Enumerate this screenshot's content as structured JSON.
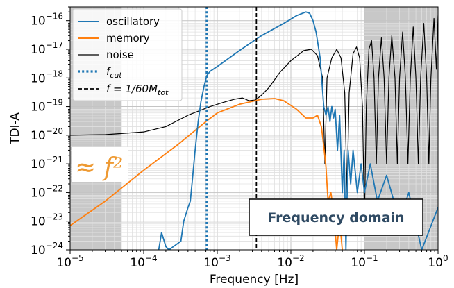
{
  "chart_data": {
    "type": "line",
    "xlabel": "Frequency [Hz]",
    "ylabel": "TDI-A",
    "xscale": "log",
    "yscale": "log",
    "xlim": [
      1e-05,
      1
    ],
    "ylim": [
      1e-24,
      3e-16
    ],
    "grid": true,
    "legend_position": "top-left",
    "x_tick_labels": [
      {
        "base": "10",
        "exp": "−5",
        "value": 1e-05
      },
      {
        "base": "10",
        "exp": "−4",
        "value": 0.0001
      },
      {
        "base": "10",
        "exp": "−3",
        "value": 0.001
      },
      {
        "base": "10",
        "exp": "−2",
        "value": 0.01
      },
      {
        "base": "10",
        "exp": "−1",
        "value": 0.1
      },
      {
        "base": "10",
        "exp": "0",
        "value": 1
      }
    ],
    "y_tick_labels": [
      {
        "base": "10",
        "exp": "−24",
        "value": 1e-24
      },
      {
        "base": "10",
        "exp": "−23",
        "value": 1e-23
      },
      {
        "base": "10",
        "exp": "−22",
        "value": 1e-22
      },
      {
        "base": "10",
        "exp": "−21",
        "value": 1e-21
      },
      {
        "base": "10",
        "exp": "−20",
        "value": 1e-20
      },
      {
        "base": "10",
        "exp": "−19",
        "value": 1e-19
      },
      {
        "base": "10",
        "exp": "−18",
        "value": 1e-18
      },
      {
        "base": "10",
        "exp": "−17",
        "value": 1e-17
      },
      {
        "base": "10",
        "exp": "−16",
        "value": 1e-16
      }
    ],
    "shaded_regions": [
      {
        "x_from": 1e-05,
        "x_to": 5e-05
      },
      {
        "x_from": 0.1,
        "x_to": 1
      }
    ],
    "vertical_lines": [
      {
        "label": "f_cut",
        "x": 0.00072,
        "style": "dotted",
        "color": "#1f77b4"
      },
      {
        "label": "f = 1/60 M_tot",
        "x": 0.0034,
        "style": "dashed",
        "color": "#000000"
      }
    ],
    "series": [
      {
        "name": "oscillatory",
        "color": "#1f77b4",
        "points": [
          [
            0.00016,
            1e-24
          ],
          [
            0.000175,
            4e-24
          ],
          [
            0.0002,
            1.3e-24
          ],
          [
            0.00022,
            1e-24
          ],
          [
            0.00032,
            2e-24
          ],
          [
            0.00035,
            1e-23
          ],
          [
            0.0004,
            3e-23
          ],
          [
            0.00043,
            5e-23
          ],
          [
            0.00046,
            3e-22
          ],
          [
            0.0005,
            3e-21
          ],
          [
            0.00055,
            3e-20
          ],
          [
            0.0006,
            1.5e-19
          ],
          [
            0.00066,
            5e-19
          ],
          [
            0.00072,
            1.2e-18
          ],
          [
            0.0008,
            1.7e-18
          ],
          [
            0.001,
            2.5e-18
          ],
          [
            0.002,
            9e-18
          ],
          [
            0.004,
            3e-17
          ],
          [
            0.008,
            8e-17
          ],
          [
            0.012,
            1.5e-16
          ],
          [
            0.016,
            2e-16
          ],
          [
            0.018,
            1.8e-16
          ],
          [
            0.02,
            1e-16
          ],
          [
            0.022,
            4e-17
          ],
          [
            0.025,
            5e-18
          ],
          [
            0.028,
            1e-19
          ],
          [
            0.03,
            5e-20
          ],
          [
            0.032,
            1e-19
          ],
          [
            0.034,
            3e-20
          ],
          [
            0.036,
            1e-19
          ],
          [
            0.038,
            4e-20
          ],
          [
            0.04,
            8e-20
          ],
          [
            0.043,
            3e-21
          ],
          [
            0.046,
            5e-20
          ],
          [
            0.05,
            1e-22
          ],
          [
            0.053,
            3e-21
          ],
          [
            0.056,
            1e-24
          ],
          [
            0.06,
            3e-21
          ],
          [
            0.065,
            2e-22
          ],
          [
            0.07,
            3e-21
          ],
          [
            0.08,
            1e-22
          ],
          [
            0.09,
            1e-21
          ],
          [
            0.1,
            1e-22
          ],
          [
            0.12,
            1e-21
          ],
          [
            0.15,
            5e-23
          ],
          [
            0.2,
            4e-22
          ],
          [
            0.3,
            1e-23
          ],
          [
            0.4,
            1e-22
          ],
          [
            0.6,
            1e-24
          ],
          [
            1,
            3e-23
          ]
        ]
      },
      {
        "name": "memory",
        "color": "#ff7f0e",
        "points": [
          [
            1e-05,
            7e-24
          ],
          [
            3e-05,
            5e-23
          ],
          [
            0.0001,
            6e-22
          ],
          [
            0.0003,
            5e-21
          ],
          [
            0.0007,
            3e-20
          ],
          [
            0.001,
            6e-20
          ],
          [
            0.002,
            1.2e-19
          ],
          [
            0.004,
            1.8e-19
          ],
          [
            0.006,
            1.9e-19
          ],
          [
            0.008,
            1.6e-19
          ],
          [
            0.012,
            8e-20
          ],
          [
            0.016,
            4e-20
          ],
          [
            0.02,
            4e-20
          ],
          [
            0.023,
            5e-20
          ],
          [
            0.026,
            2e-20
          ],
          [
            0.028,
            4e-21
          ],
          [
            0.03,
            8e-22
          ],
          [
            0.032,
            5e-23
          ],
          [
            0.035,
            1e-22
          ],
          [
            0.038,
            2e-23
          ],
          [
            0.042,
            1e-24
          ],
          [
            0.046,
            1e-23
          ],
          [
            0.05,
            1e-24
          ]
        ]
      },
      {
        "name": "noise",
        "color": "#000000",
        "points": [
          [
            1e-05,
            1e-20
          ],
          [
            3e-05,
            1.05e-20
          ],
          [
            0.0001,
            1.3e-20
          ],
          [
            0.0002,
            2e-20
          ],
          [
            0.0004,
            5e-20
          ],
          [
            0.0008,
            1e-19
          ],
          [
            0.0012,
            1.4e-19
          ],
          [
            0.0017,
            1.8e-19
          ],
          [
            0.0022,
            2e-19
          ],
          [
            0.0027,
            1.6e-19
          ],
          [
            0.0033,
            1.7e-19
          ],
          [
            0.004,
            2.5e-19
          ],
          [
            0.005,
            4.5e-19
          ],
          [
            0.007,
            1.5e-18
          ],
          [
            0.01,
            4e-18
          ],
          [
            0.015,
            9e-18
          ],
          [
            0.019,
            1e-17
          ],
          [
            0.023,
            6e-18
          ],
          [
            0.027,
            1e-18
          ],
          [
            0.029,
            1e-21
          ],
          [
            0.031,
            1e-18
          ],
          [
            0.036,
            5e-18
          ],
          [
            0.042,
            1e-17
          ],
          [
            0.048,
            5e-18
          ],
          [
            0.054,
            3e-19
          ],
          [
            0.058,
            1e-22
          ],
          [
            0.062,
            3e-19
          ],
          [
            0.07,
            7e-18
          ],
          [
            0.078,
            1.2e-17
          ],
          [
            0.086,
            5e-18
          ],
          [
            0.094,
            1e-19
          ],
          [
            0.1,
            1e-23
          ],
          [
            0.106,
            1e-19
          ],
          [
            0.115,
            1e-17
          ],
          [
            0.125,
            2e-17
          ],
          [
            0.135,
            1e-18
          ],
          [
            0.145,
            1e-21
          ],
          [
            0.155,
            1e-18
          ],
          [
            0.17,
            2.5e-17
          ],
          [
            0.185,
            1e-18
          ],
          [
            0.2,
            1e-21
          ],
          [
            0.215,
            1e-18
          ],
          [
            0.235,
            3e-17
          ],
          [
            0.26,
            1e-18
          ],
          [
            0.28,
            1e-21
          ],
          [
            0.3,
            1e-18
          ],
          [
            0.33,
            4e-17
          ],
          [
            0.36,
            1e-18
          ],
          [
            0.39,
            1e-21
          ],
          [
            0.42,
            1e-18
          ],
          [
            0.46,
            6e-17
          ],
          [
            0.5,
            1e-18
          ],
          [
            0.54,
            1e-21
          ],
          [
            0.58,
            1e-18
          ],
          [
            0.64,
            8e-17
          ],
          [
            0.7,
            1e-18
          ],
          [
            0.75,
            1e-21
          ],
          [
            0.8,
            1e-18
          ],
          [
            0.88,
            1.2e-16
          ],
          [
            0.95,
            2e-18
          ],
          [
            1,
            1.5e-16
          ]
        ]
      }
    ],
    "annotations": [
      {
        "id": "f2",
        "text": "≈ f²",
        "color": "#ee9a33"
      },
      {
        "id": "domain",
        "text": "Frequency domain"
      }
    ]
  },
  "legend": [
    {
      "label": "oscillatory",
      "color": "#1f77b4",
      "style": "solid"
    },
    {
      "label": "memory",
      "color": "#ff7f0e",
      "style": "solid"
    },
    {
      "label": "noise",
      "color": "#000000",
      "style": "solid-thin"
    },
    {
      "label_main": "f",
      "label_sub": "cut",
      "color": "#1f77b4",
      "style": "dotted"
    },
    {
      "label_main": "f = 1/60M",
      "label_sub": "tot",
      "color": "#000000",
      "style": "dashed"
    }
  ]
}
